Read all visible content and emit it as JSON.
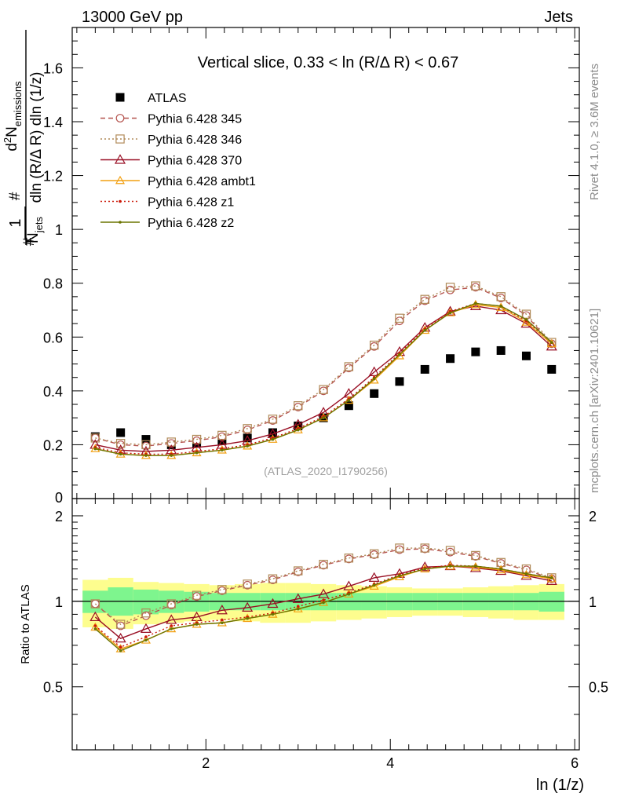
{
  "header": {
    "left": "13000 GeV pp",
    "right": "Jets"
  },
  "side_labels": {
    "rivet": "Rivet 4.1.0, ≥ 3.6M events",
    "mcplots": "mcplots.cern.ch [arXiv:2401.10621]"
  },
  "colors": {
    "atlas": "#000000",
    "p345": "#b5544f",
    "p346": "#b08a58",
    "p370": "#990f24",
    "ambt1": "#f2a012",
    "z1": "#cc1a0a",
    "z2": "#6b7500",
    "band_inner": "#7ef58e",
    "band_outer": "#fdfd8e"
  },
  "chart_data": [
    {
      "type": "line",
      "panel": "main",
      "title": "Vertical slice, 0.33 < ln (R/Δ R) < 0.67",
      "watermark": "(ATLAS_2020_I1790256)",
      "ylabel_parts": {
        "prefix": "#",
        "one": "1",
        "njets": "N",
        "njets_sub": "jets",
        "hash2": "#",
        "d2": "d",
        "d2_sup": "2",
        "nemis": "N",
        "nemis_sub": "emissions",
        "den": "dln (R/Δ R) dln (1/z)"
      },
      "xlim": [
        0.55,
        6.05
      ],
      "ylim": [
        0,
        1.75
      ],
      "yticks": [
        0.2,
        0.4,
        0.6,
        0.8,
        1,
        1.2,
        1.4,
        1.6
      ],
      "ytick_labels": [
        "0.2",
        "0.4",
        "0.6",
        "0.8",
        "1",
        "1.2",
        "1.4",
        "1.6"
      ],
      "zero_label": "0",
      "x": [
        0.8,
        1.075,
        1.35,
        1.625,
        1.9,
        2.175,
        2.45,
        2.725,
        3.0,
        3.275,
        3.55,
        3.825,
        4.1,
        4.375,
        4.65,
        4.925,
        5.2,
        5.475,
        5.75
      ],
      "series": [
        {
          "name": "ATLAS",
          "key": "atlas",
          "values": [
            0.23,
            0.245,
            0.22,
            0.2,
            0.205,
            0.215,
            0.225,
            0.245,
            0.27,
            0.3,
            0.345,
            0.39,
            0.435,
            0.48,
            0.52,
            0.545,
            0.55,
            0.53,
            0.48
          ]
        },
        {
          "name": "Pythia 6.428 345",
          "key": "p345",
          "values": [
            0.225,
            0.2,
            0.195,
            0.205,
            0.215,
            0.23,
            0.255,
            0.29,
            0.34,
            0.4,
            0.485,
            0.565,
            0.66,
            0.735,
            0.775,
            0.785,
            0.745,
            0.68,
            0.575
          ]
        },
        {
          "name": "Pythia 6.428 346",
          "key": "p346",
          "values": [
            0.225,
            0.205,
            0.2,
            0.21,
            0.22,
            0.235,
            0.26,
            0.295,
            0.345,
            0.405,
            0.49,
            0.57,
            0.67,
            0.74,
            0.785,
            0.79,
            0.75,
            0.685,
            0.58
          ]
        },
        {
          "name": "Pythia 6.428 370",
          "key": "p370",
          "values": [
            0.2,
            0.18,
            0.175,
            0.18,
            0.19,
            0.2,
            0.215,
            0.24,
            0.275,
            0.32,
            0.39,
            0.47,
            0.545,
            0.635,
            0.695,
            0.715,
            0.7,
            0.65,
            0.565
          ]
        },
        {
          "name": "Pythia 6.428 ambt1",
          "key": "ambt1",
          "values": [
            0.185,
            0.165,
            0.16,
            0.16,
            0.17,
            0.18,
            0.195,
            0.22,
            0.255,
            0.3,
            0.365,
            0.44,
            0.53,
            0.625,
            0.69,
            0.72,
            0.71,
            0.655,
            0.575
          ]
        },
        {
          "name": "Pythia 6.428 z1",
          "key": "z1",
          "values": [
            0.19,
            0.17,
            0.165,
            0.165,
            0.175,
            0.185,
            0.2,
            0.225,
            0.26,
            0.305,
            0.37,
            0.45,
            0.54,
            0.63,
            0.695,
            0.725,
            0.715,
            0.66,
            0.58
          ]
        },
        {
          "name": "Pythia 6.428 z2",
          "key": "z2",
          "values": [
            0.185,
            0.165,
            0.16,
            0.16,
            0.17,
            0.18,
            0.195,
            0.22,
            0.255,
            0.3,
            0.365,
            0.445,
            0.535,
            0.625,
            0.69,
            0.725,
            0.715,
            0.665,
            0.58
          ]
        }
      ]
    },
    {
      "type": "line",
      "panel": "ratio",
      "ylabel": "Ratio to ATLAS",
      "xlabel": "ln (1/z)",
      "xlim": [
        0.55,
        6.05
      ],
      "ylim": [
        0.3,
        2.3
      ],
      "xticks": [
        2,
        4,
        6
      ],
      "xtick_labels": [
        "2",
        "4",
        "6"
      ],
      "yticks": [
        0.5,
        1,
        2
      ],
      "ytick_labels": [
        "0.5",
        "1",
        "2"
      ],
      "reference": 1,
      "x": [
        0.8,
        1.075,
        1.35,
        1.625,
        1.9,
        2.175,
        2.45,
        2.725,
        3.0,
        3.275,
        3.55,
        3.825,
        4.1,
        4.375,
        4.65,
        4.925,
        5.2,
        5.475,
        5.75
      ],
      "band_inner": {
        "lo": [
          0.91,
          0.89,
          0.9,
          0.91,
          0.92,
          0.93,
          0.93,
          0.93,
          0.93,
          0.93,
          0.93,
          0.93,
          0.93,
          0.93,
          0.93,
          0.93,
          0.93,
          0.93,
          0.92
        ],
        "hi": [
          1.09,
          1.12,
          1.1,
          1.09,
          1.08,
          1.07,
          1.07,
          1.07,
          1.07,
          1.07,
          1.07,
          1.07,
          1.07,
          1.07,
          1.07,
          1.07,
          1.07,
          1.07,
          1.08
        ]
      },
      "band_outer": {
        "lo": [
          0.81,
          0.8,
          0.83,
          0.84,
          0.85,
          0.86,
          0.85,
          0.84,
          0.84,
          0.85,
          0.86,
          0.87,
          0.88,
          0.89,
          0.89,
          0.88,
          0.87,
          0.86,
          0.86
        ]
      },
      "band_outer_hi": [
        1.19,
        1.21,
        1.17,
        1.16,
        1.15,
        1.14,
        1.15,
        1.16,
        1.16,
        1.15,
        1.14,
        1.13,
        1.12,
        1.11,
        1.11,
        1.12,
        1.13,
        1.14,
        1.15
      ],
      "series": [
        {
          "name": "Pythia 6.428 345",
          "key": "p345",
          "values": [
            0.98,
            0.82,
            0.89,
            0.97,
            1.04,
            1.09,
            1.14,
            1.19,
            1.27,
            1.34,
            1.41,
            1.46,
            1.52,
            1.53,
            1.49,
            1.44,
            1.36,
            1.29,
            1.2
          ]
        },
        {
          "name": "Pythia 6.428 346",
          "key": "p346",
          "values": [
            0.98,
            0.83,
            0.91,
            0.98,
            1.05,
            1.1,
            1.15,
            1.2,
            1.28,
            1.35,
            1.42,
            1.47,
            1.54,
            1.54,
            1.51,
            1.45,
            1.37,
            1.3,
            1.21
          ]
        },
        {
          "name": "Pythia 6.428 370",
          "key": "p370",
          "values": [
            0.88,
            0.74,
            0.8,
            0.86,
            0.88,
            0.93,
            0.95,
            0.98,
            1.02,
            1.06,
            1.13,
            1.21,
            1.25,
            1.32,
            1.33,
            1.31,
            1.28,
            1.23,
            1.18
          ]
        },
        {
          "name": "Pythia 6.428 ambt1",
          "key": "ambt1",
          "values": [
            0.81,
            0.68,
            0.73,
            0.8,
            0.83,
            0.84,
            0.87,
            0.9,
            0.94,
            0.99,
            1.06,
            1.13,
            1.22,
            1.3,
            1.33,
            1.32,
            1.29,
            1.24,
            1.2
          ]
        },
        {
          "name": "Pythia 6.428 z1",
          "key": "z1",
          "values": [
            0.82,
            0.69,
            0.75,
            0.82,
            0.84,
            0.86,
            0.88,
            0.91,
            0.96,
            1.01,
            1.07,
            1.15,
            1.24,
            1.31,
            1.34,
            1.33,
            1.3,
            1.25,
            1.21
          ]
        },
        {
          "name": "Pythia 6.428 z2",
          "key": "z2",
          "values": [
            0.8,
            0.67,
            0.73,
            0.8,
            0.83,
            0.84,
            0.87,
            0.9,
            0.94,
            0.99,
            1.06,
            1.14,
            1.23,
            1.3,
            1.33,
            1.33,
            1.3,
            1.25,
            1.21
          ]
        }
      ]
    }
  ]
}
